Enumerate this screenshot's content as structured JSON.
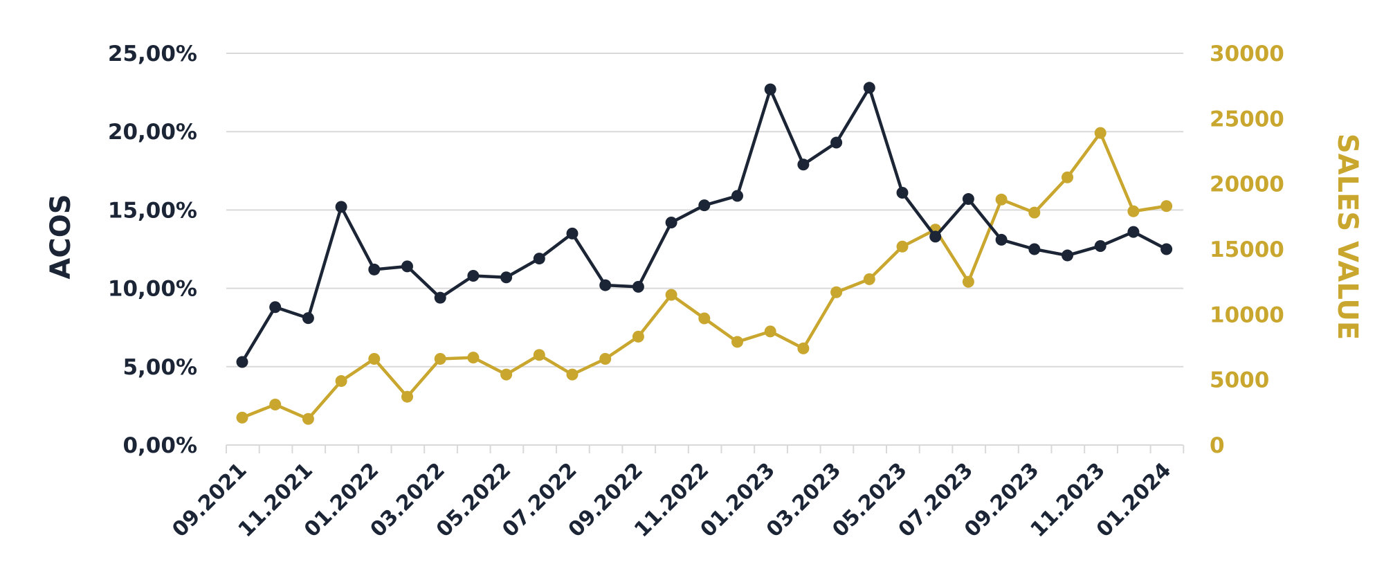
{
  "colors": {
    "acos": "#1b2535",
    "sales": "#c9a62e",
    "grid": "#d9d9d9",
    "background": "#ffffff"
  },
  "chart_data": {
    "type": "line",
    "title": "",
    "xlabel": "",
    "ylabel": "ACOS",
    "y2label": "SALES VALUE",
    "grid": true,
    "legend": "none",
    "x": [
      "09.2021",
      "10.2021",
      "11.2021",
      "12.2021",
      "01.2022",
      "02.2022",
      "03.2022",
      "04.2022",
      "05.2022",
      "06.2022",
      "07.2022",
      "08.2022",
      "09.2022",
      "10.2022",
      "11.2022",
      "12.2022",
      "01.2023",
      "02.2023",
      "03.2023",
      "04.2023",
      "05.2023",
      "06.2023",
      "07.2023",
      "08.2023",
      "09.2023",
      "10.2023",
      "11.2023",
      "12.2023",
      "01.2024"
    ],
    "x_tick_labels": [
      "09.2021",
      "11.2021",
      "01.2022",
      "03.2022",
      "05.2022",
      "07.2022",
      "09.2022",
      "11.2022",
      "01.2023",
      "03.2023",
      "05.2023",
      "07.2023",
      "09.2023",
      "11.2023",
      "01.2024"
    ],
    "ylim": [
      0,
      25
    ],
    "y_ticks": [
      "0,00%",
      "5,00%",
      "10,00%",
      "15,00%",
      "20,00%",
      "25,00%"
    ],
    "y2lim": [
      0,
      30000
    ],
    "y2_ticks": [
      "0",
      "5000",
      "10000",
      "15000",
      "20000",
      "25000",
      "30000"
    ],
    "series": [
      {
        "key": "acos",
        "axis": "left",
        "unit": "%",
        "values": [
          5.3,
          8.8,
          8.1,
          15.2,
          11.2,
          11.4,
          9.4,
          10.8,
          10.7,
          11.9,
          13.5,
          10.2,
          10.1,
          14.2,
          15.3,
          15.9,
          22.7,
          17.9,
          19.3,
          22.8,
          16.1,
          13.3,
          15.7,
          13.1,
          12.5,
          12.1,
          12.7,
          13.6,
          12.5
        ]
      },
      {
        "key": "sales",
        "axis": "right",
        "values": [
          2100,
          3100,
          2000,
          4900,
          6600,
          3700,
          6600,
          6700,
          5400,
          6900,
          5400,
          6600,
          8300,
          11500,
          9700,
          7900,
          8700,
          7400,
          11700,
          12700,
          15200,
          16500,
          12500,
          18800,
          17800,
          20500,
          23900,
          17900,
          18300
        ]
      }
    ]
  }
}
